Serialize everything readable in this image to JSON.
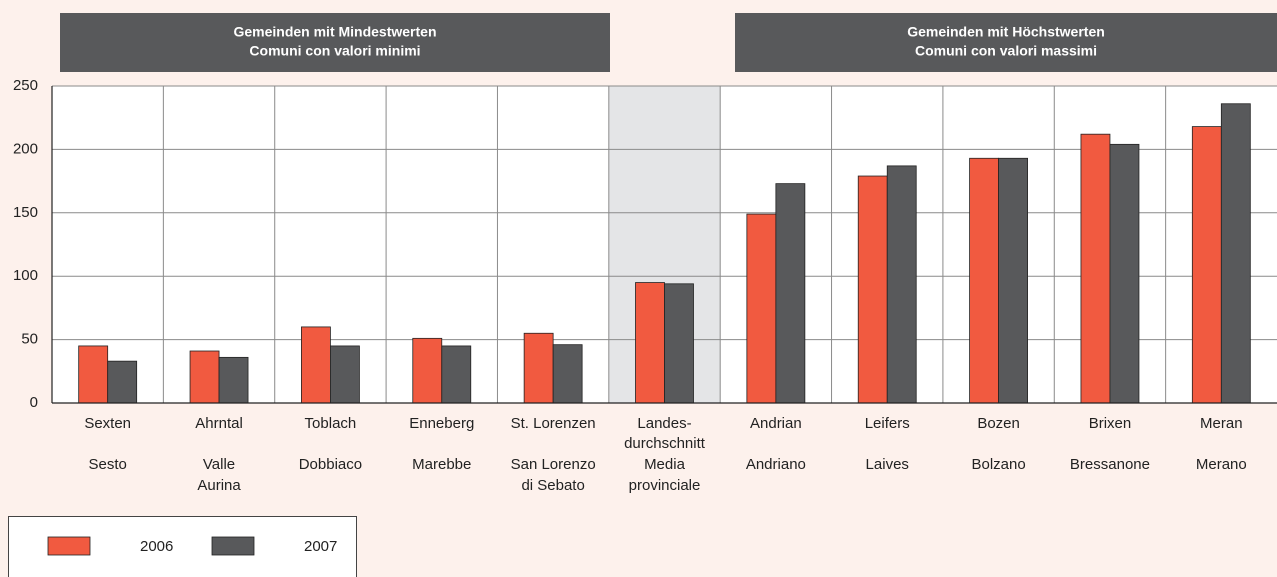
{
  "chart_data": {
    "type": "bar",
    "group_labels": [
      [
        "Gemeinden mit Mindestwerten",
        "Comuni con valori minimi"
      ],
      [
        "Gemeinden mit Höchstwerten",
        "Comuni con valori massimi"
      ]
    ],
    "categories": [
      {
        "de": [
          "Sexten"
        ],
        "it": [
          "Sesto"
        ]
      },
      {
        "de": [
          "Ahrntal"
        ],
        "it": [
          "Valle",
          "Aurina"
        ]
      },
      {
        "de": [
          "Toblach"
        ],
        "it": [
          "Dobbiaco"
        ]
      },
      {
        "de": [
          "Enneberg"
        ],
        "it": [
          "Marebbe"
        ]
      },
      {
        "de": [
          "St. Lorenzen"
        ],
        "it": [
          "San Lorenzo",
          "di Sebato"
        ]
      },
      {
        "de": [
          "Landes-",
          "durchschnitt"
        ],
        "it": [
          "Media",
          "provinciale"
        ]
      },
      {
        "de": [
          "Andrian"
        ],
        "it": [
          "Andriano"
        ]
      },
      {
        "de": [
          "Leifers"
        ],
        "it": [
          "Laives"
        ]
      },
      {
        "de": [
          "Bozen"
        ],
        "it": [
          "Bolzano"
        ]
      },
      {
        "de": [
          "Brixen"
        ],
        "it": [
          "Bressanone"
        ]
      },
      {
        "de": [
          "Meran"
        ],
        "it": [
          "Merano"
        ]
      }
    ],
    "highlight": 5,
    "series": [
      {
        "name": "2006",
        "color": "#f15a40",
        "values": [
          45,
          41,
          60,
          51,
          55,
          95,
          149,
          179,
          193,
          212,
          218
        ]
      },
      {
        "name": "2007",
        "color": "#58595b",
        "values": [
          33,
          36,
          45,
          45,
          46,
          94,
          173,
          187,
          193,
          204,
          236
        ]
      }
    ],
    "ylim": [
      0,
      250
    ],
    "yticks": [
      0,
      50,
      100,
      150,
      200,
      250
    ],
    "grid": true
  }
}
